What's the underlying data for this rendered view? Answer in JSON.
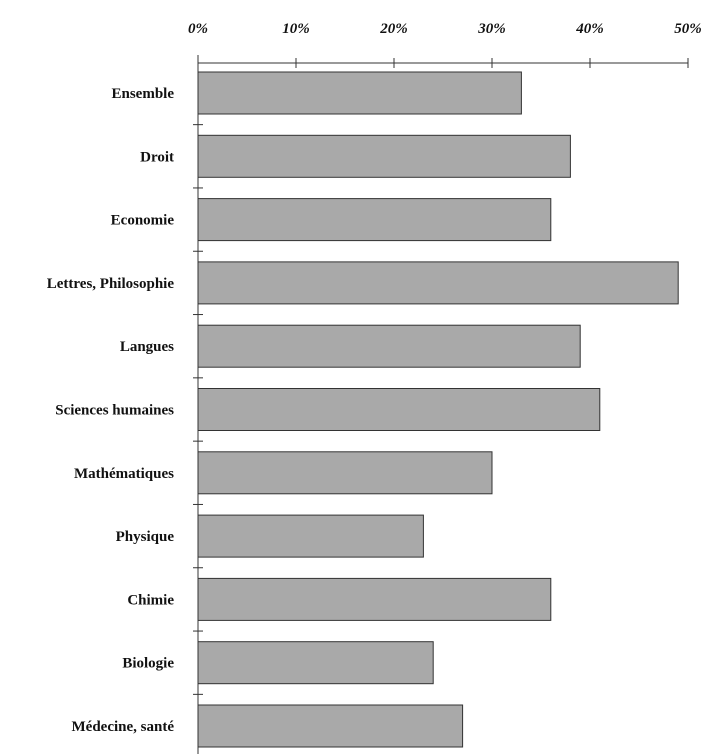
{
  "chart_data": {
    "type": "bar",
    "orientation": "horizontal",
    "title": "",
    "xlabel": "",
    "ylabel": "",
    "xlim": [
      0,
      50
    ],
    "x_axis_position": "top",
    "tick_values": [
      0,
      10,
      20,
      30,
      40,
      50
    ],
    "tick_labels": [
      "0%",
      "10%",
      "20%",
      "30%",
      "40%",
      "50%"
    ],
    "grid": false,
    "legend": "none",
    "bar_color": "#a9a9a9",
    "categories": [
      "Ensemble",
      "Droit",
      "Economie",
      "Lettres, Philosophie",
      "Langues",
      "Sciences humaines",
      "Mathématiques",
      "Physique",
      "Chimie",
      "Biologie",
      "Médecine, santé"
    ],
    "values": [
      33,
      38,
      36,
      49,
      39,
      41,
      30,
      23,
      36,
      24,
      27
    ]
  }
}
